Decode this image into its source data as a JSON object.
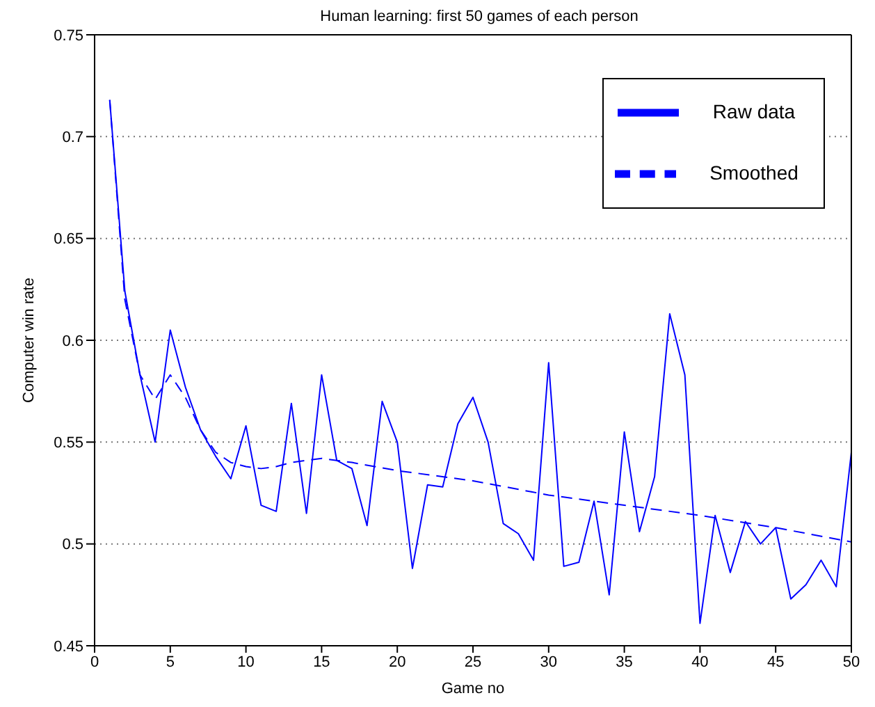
{
  "chart_data": {
    "type": "line",
    "title": "Human learning: first 50 games of each person",
    "xlabel": "Game no",
    "ylabel": "Computer win rate",
    "xlim": [
      0,
      50
    ],
    "xticks": [
      0,
      5,
      10,
      15,
      20,
      25,
      30,
      35,
      40,
      45,
      50
    ],
    "ylim": [
      0.45,
      0.75
    ],
    "yticks": [
      0.45,
      0.5,
      0.55,
      0.6,
      0.65,
      0.7,
      0.75
    ],
    "grid": "y",
    "legend": "top right",
    "marker": "none",
    "series": [
      {
        "name": "Raw data",
        "color": "#0000ff",
        "line_style": "solid",
        "x": [
          1,
          2,
          3,
          4,
          5,
          6,
          7,
          8,
          9,
          10,
          11,
          12,
          13,
          14,
          15,
          16,
          17,
          18,
          19,
          20,
          21,
          22,
          23,
          24,
          25,
          26,
          27,
          28,
          29,
          30,
          31,
          32,
          33,
          34,
          35,
          36,
          37,
          38,
          39,
          40,
          41,
          42,
          43,
          44,
          45,
          46,
          47,
          48,
          49,
          50
        ],
        "values": [
          0.718,
          0.624,
          0.583,
          0.55,
          0.605,
          0.577,
          0.556,
          0.543,
          0.532,
          0.558,
          0.519,
          0.516,
          0.569,
          0.515,
          0.583,
          0.541,
          0.537,
          0.509,
          0.57,
          0.55,
          0.488,
          0.529,
          0.528,
          0.559,
          0.572,
          0.55,
          0.51,
          0.505,
          0.492,
          0.589,
          0.489,
          0.491,
          0.521,
          0.475,
          0.555,
          0.506,
          0.533,
          0.613,
          0.583,
          0.461,
          0.514,
          0.486,
          0.511,
          0.5,
          0.508,
          0.473,
          0.48,
          0.492,
          0.479,
          0.545
        ]
      },
      {
        "name": "Smoothed",
        "color": "#0000ff",
        "line_style": "dashed",
        "x": [
          1,
          2,
          3,
          4,
          5,
          6,
          7,
          8,
          9,
          10,
          11,
          12,
          13,
          14,
          15,
          16,
          17,
          20,
          25,
          30,
          35,
          40,
          45,
          50
        ],
        "values": [
          0.718,
          0.62,
          0.583,
          0.571,
          0.583,
          0.572,
          0.556,
          0.545,
          0.54,
          0.538,
          0.537,
          0.538,
          0.54,
          0.541,
          0.542,
          0.541,
          0.54,
          0.536,
          0.531,
          0.524,
          0.519,
          0.514,
          0.508,
          0.501
        ]
      }
    ]
  }
}
